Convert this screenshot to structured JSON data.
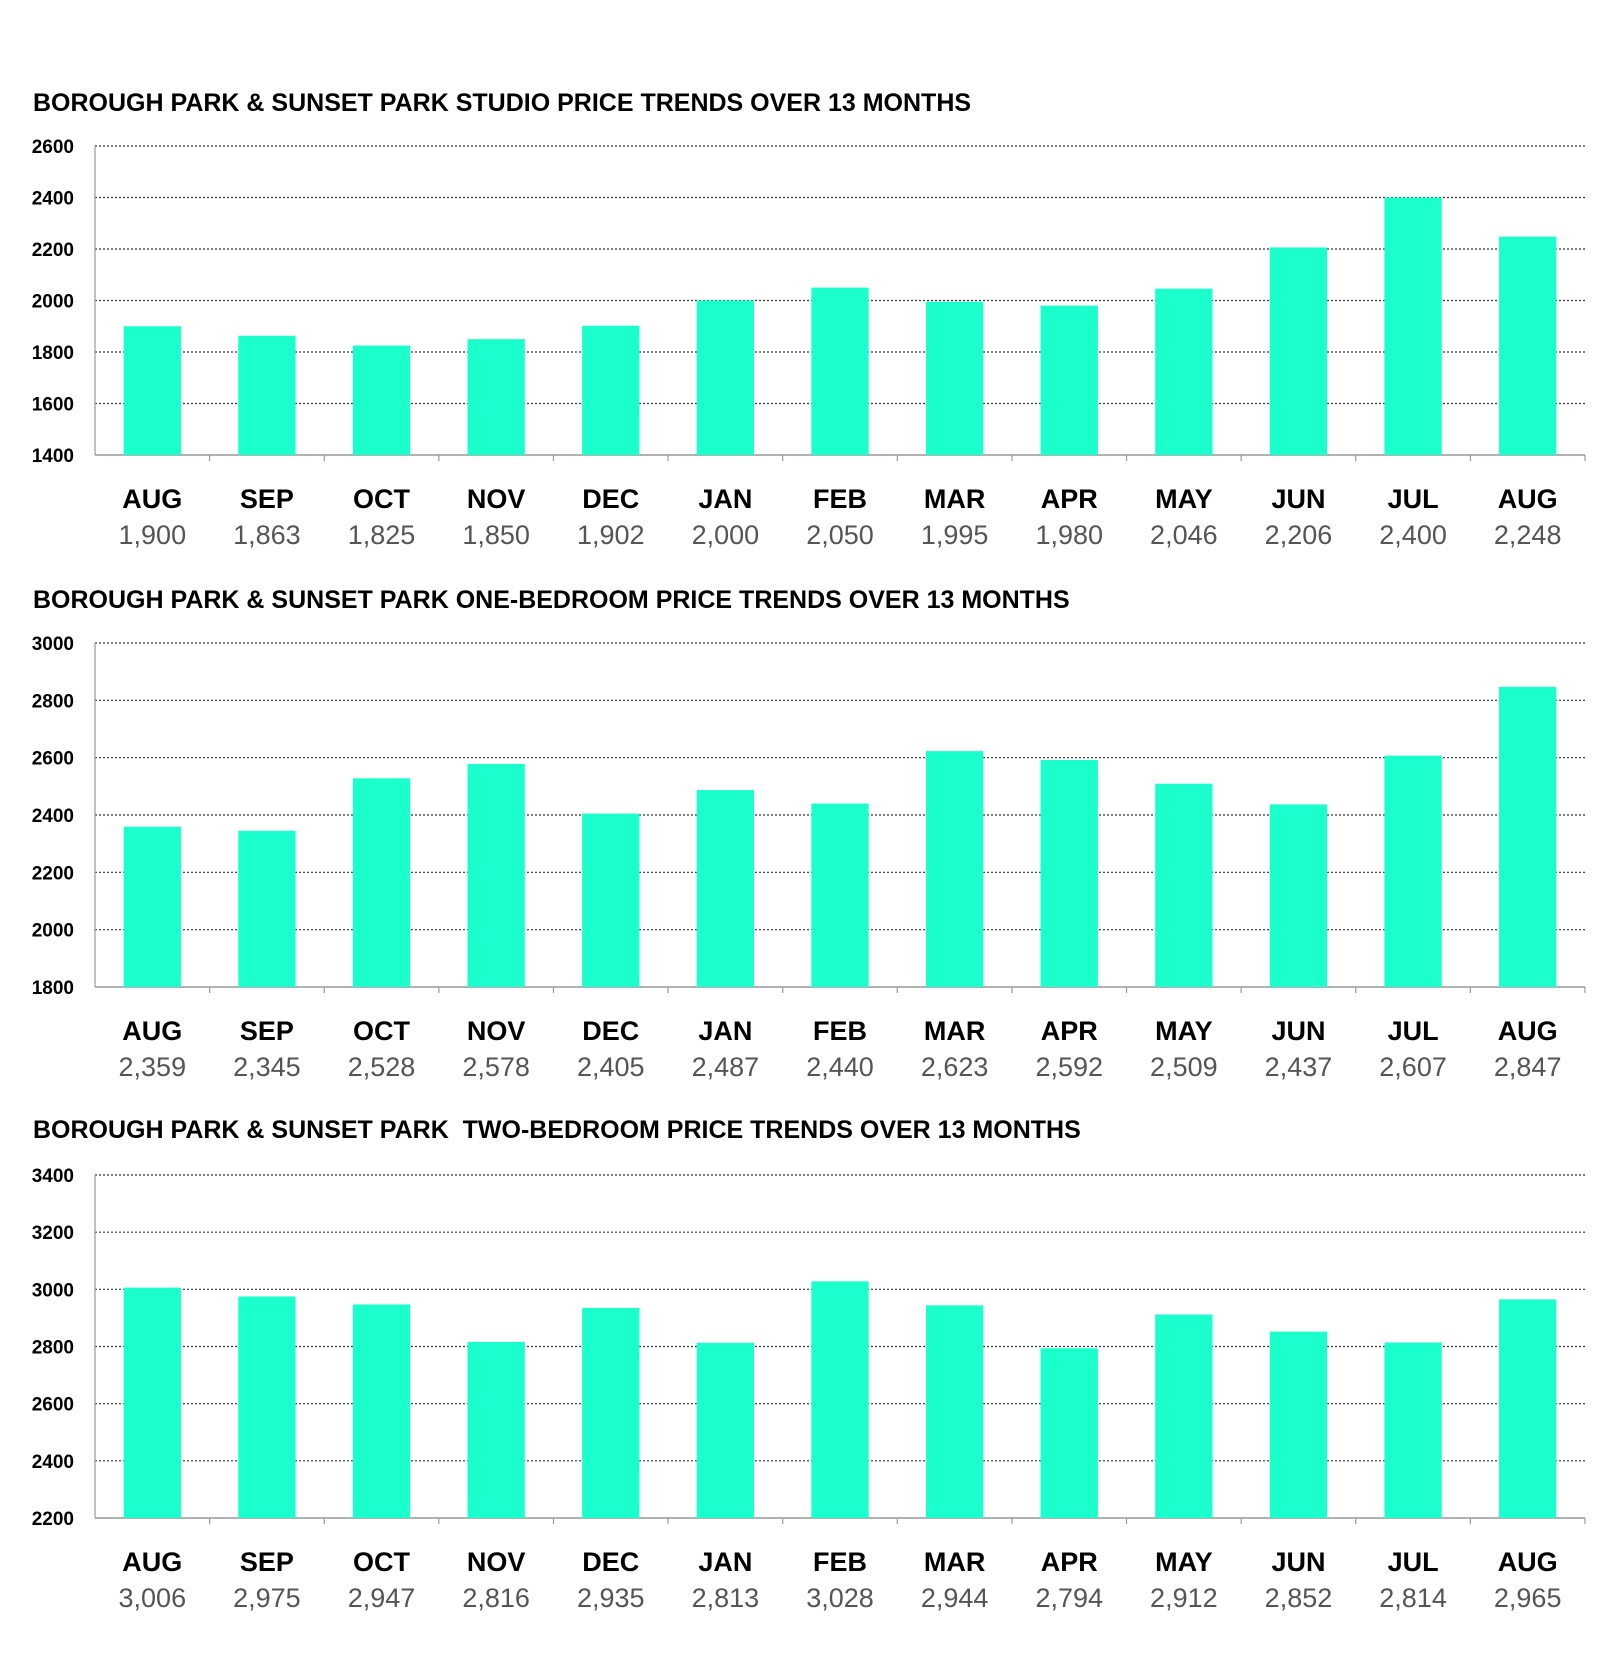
{
  "colors": {
    "bar": "#1bffcc",
    "grid": "#333333",
    "text": "#000000",
    "value_text": "#555555"
  },
  "chart_data": [
    {
      "type": "bar",
      "title": "BOROUGH PARK & SUNSET PARK STUDIO PRICE TRENDS OVER 13 MONTHS",
      "categories": [
        "AUG",
        "SEP",
        "OCT",
        "NOV",
        "DEC",
        "JAN",
        "FEB",
        "MAR",
        "APR",
        "MAY",
        "JUN",
        "JUL",
        "AUG"
      ],
      "values": [
        1900,
        1863,
        1825,
        1850,
        1902,
        2000,
        2050,
        1995,
        1980,
        2046,
        2206,
        2400,
        2248
      ],
      "value_labels": [
        "1,900",
        "1,863",
        "1,825",
        "1,850",
        "1,902",
        "2,000",
        "2,050",
        "1,995",
        "1,980",
        "2,046",
        "2,206",
        "2,400",
        "2,248"
      ],
      "yticks": [
        "1400",
        "1600",
        "1800",
        "2000",
        "2200",
        "2400",
        "2600"
      ],
      "ylim": [
        1400,
        2600
      ],
      "grid": true
    },
    {
      "type": "bar",
      "title": "BOROUGH PARK & SUNSET PARK ONE-BEDROOM PRICE TRENDS OVER 13 MONTHS",
      "categories": [
        "AUG",
        "SEP",
        "OCT",
        "NOV",
        "DEC",
        "JAN",
        "FEB",
        "MAR",
        "APR",
        "MAY",
        "JUN",
        "JUL",
        "AUG"
      ],
      "values": [
        2359,
        2345,
        2528,
        2578,
        2405,
        2487,
        2440,
        2623,
        2592,
        2509,
        2437,
        2607,
        2847
      ],
      "value_labels": [
        "2,359",
        "2,345",
        "2,528",
        "2,578",
        "2,405",
        "2,487",
        "2,440",
        "2,623",
        "2,592",
        "2,509",
        "2,437",
        "2,607",
        "2,847"
      ],
      "yticks": [
        "1800",
        "2000",
        "2200",
        "2400",
        "2600",
        "2800",
        "3000"
      ],
      "ylim": [
        1800,
        3000
      ],
      "grid": true
    },
    {
      "type": "bar",
      "title": "BOROUGH PARK & SUNSET PARK  TWO-BEDROOM PRICE TRENDS OVER 13 MONTHS",
      "categories": [
        "AUG",
        "SEP",
        "OCT",
        "NOV",
        "DEC",
        "JAN",
        "FEB",
        "MAR",
        "APR",
        "MAY",
        "JUN",
        "JUL",
        "AUG"
      ],
      "values": [
        3006,
        2975,
        2947,
        2816,
        2935,
        2813,
        3028,
        2944,
        2794,
        2912,
        2852,
        2814,
        2965
      ],
      "value_labels": [
        "3,006",
        "2,975",
        "2,947",
        "2,816",
        "2,935",
        "2,813",
        "3,028",
        "2,944",
        "2,794",
        "2,912",
        "2,852",
        "2,814",
        "2,965"
      ],
      "yticks": [
        "2200",
        "2400",
        "2600",
        "2800",
        "3000",
        "3200",
        "3400"
      ],
      "ylim": [
        2200,
        3400
      ],
      "grid": true
    }
  ]
}
